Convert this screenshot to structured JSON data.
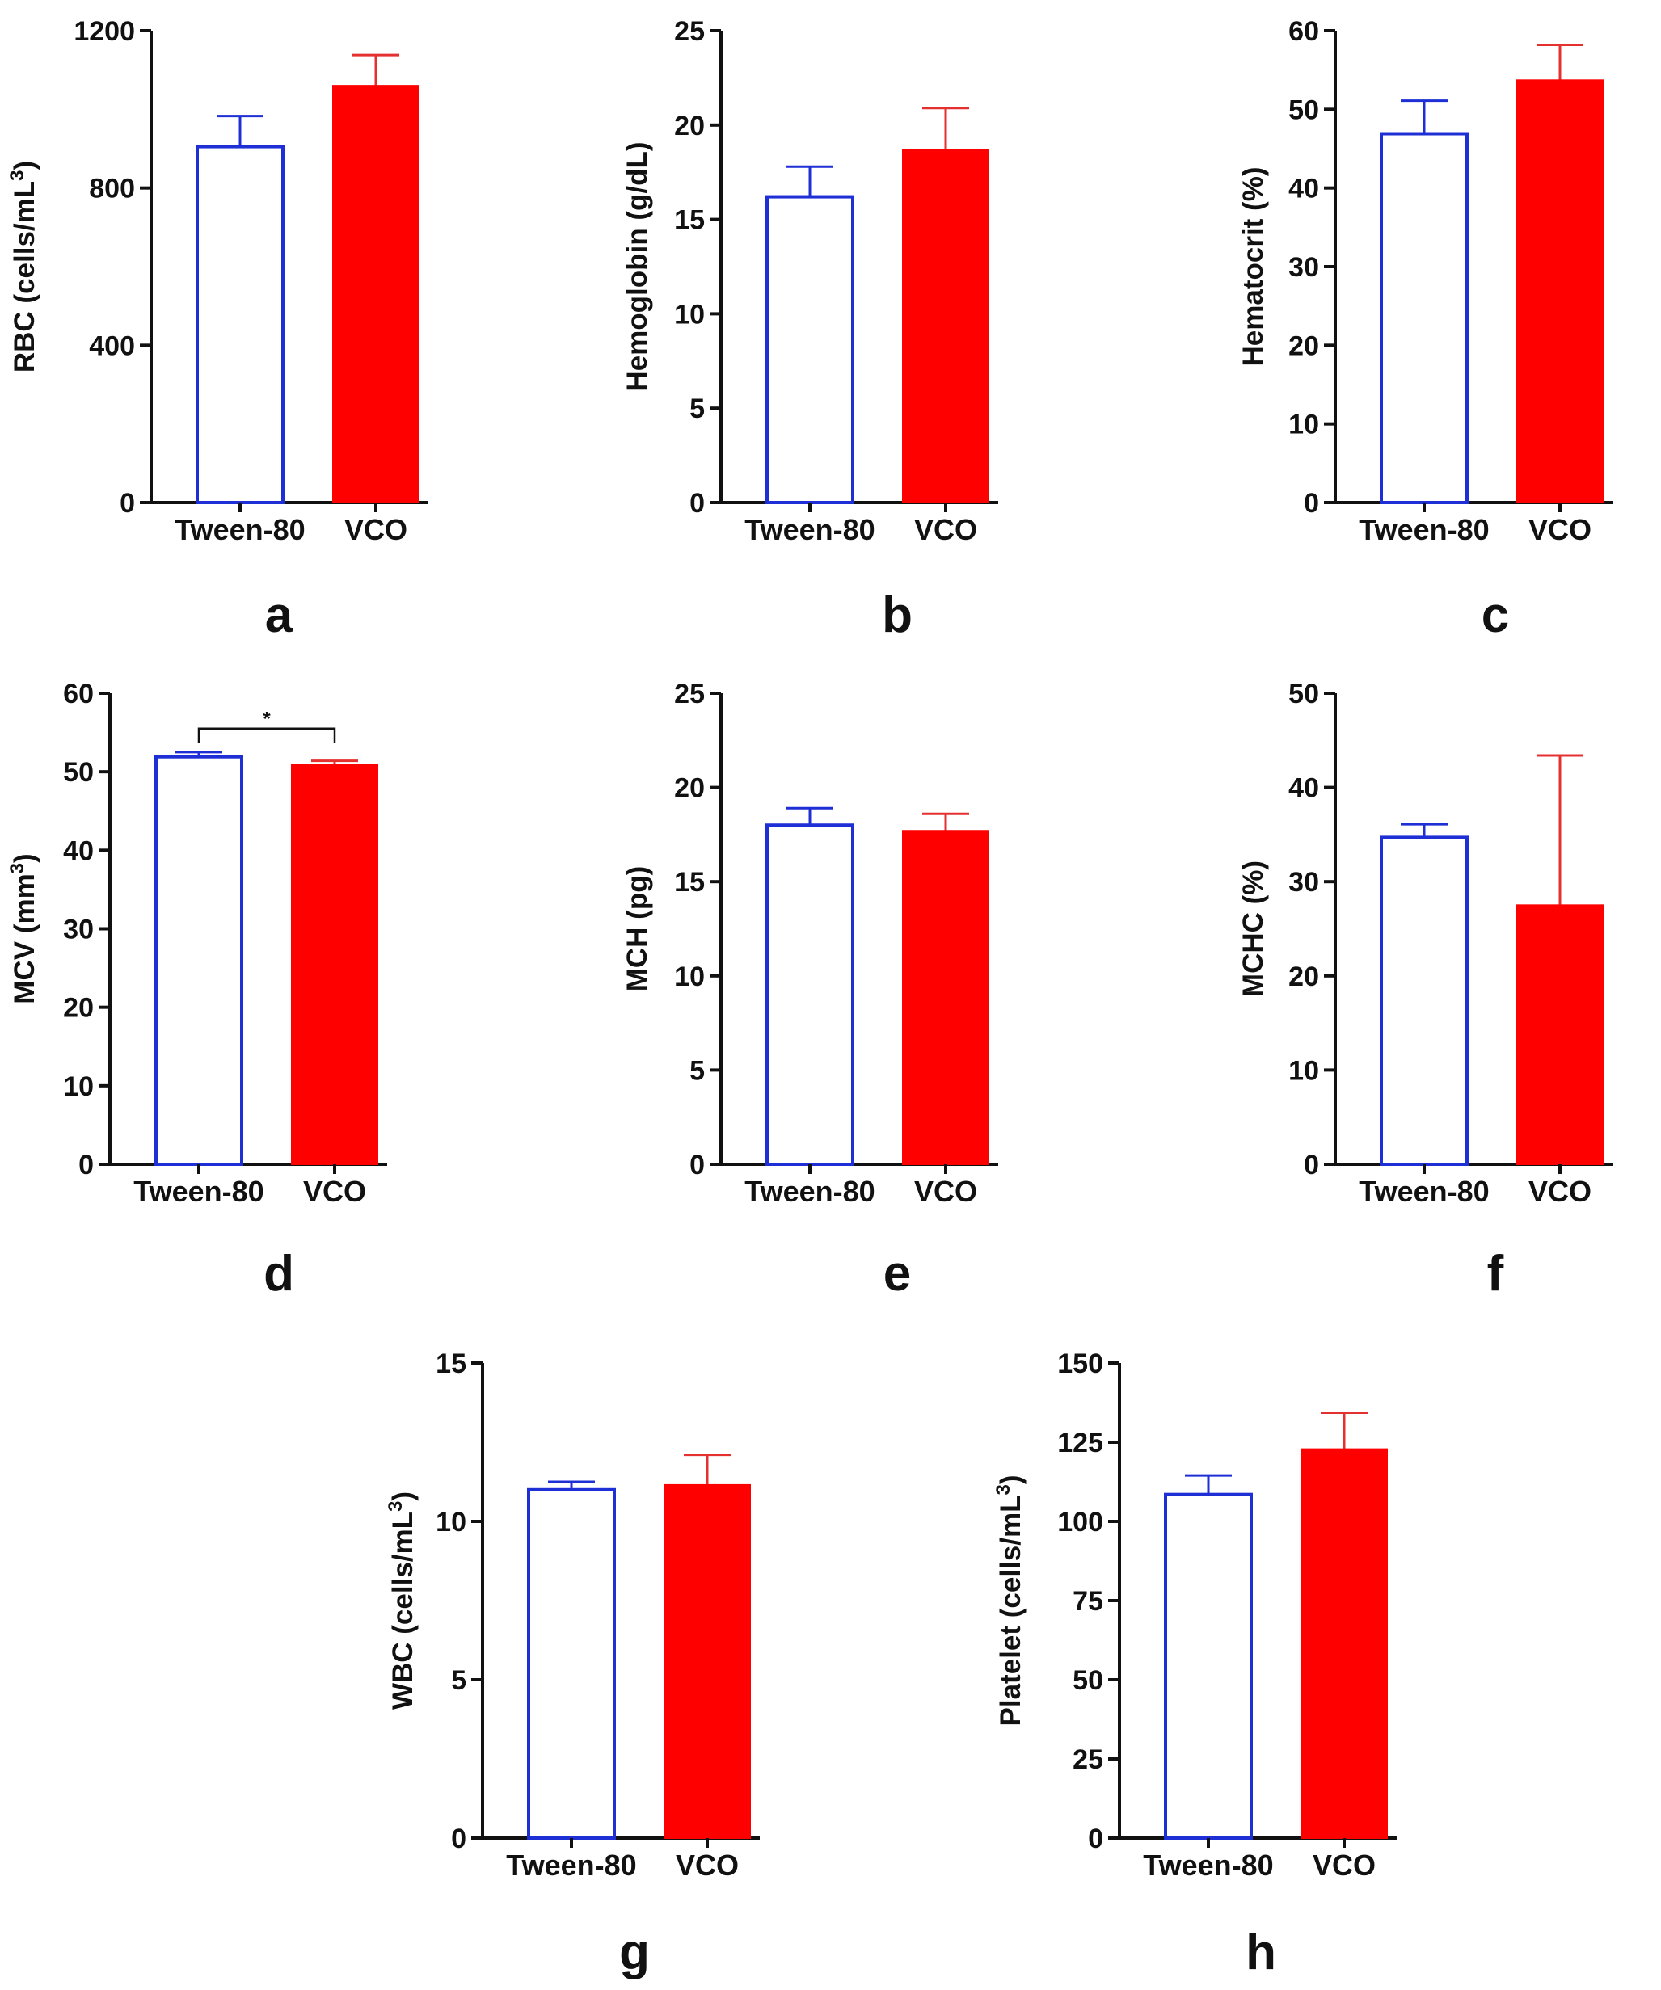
{
  "figure_caption": "",
  "colors": {
    "control_outline": "#1f2fd6",
    "treated_fill": "#ff0000",
    "treated_error": "#e53030",
    "axis": "#111111"
  },
  "chart_data": [
    {
      "panel": "a",
      "type": "bar",
      "categories": [
        "Tween-80",
        "VCO"
      ],
      "ylabel": "RBC (cells/mL",
      "ylabel_sup": "3",
      "ylabel_suffix": ")",
      "ylim": [
        0,
        1200
      ],
      "yticks": [
        "0",
        "400",
        "800",
        "1200"
      ],
      "ytick_values": [
        0,
        400,
        800,
        1200
      ],
      "series": [
        {
          "name": "values",
          "values": [
            905,
            1060
          ]
        },
        {
          "name": "sem",
          "values": [
            78,
            78
          ]
        }
      ],
      "annotation": null
    },
    {
      "panel": "b",
      "type": "bar",
      "categories": [
        "Tween-80",
        "VCO"
      ],
      "ylabel": "Hemoglobin (g/dL)",
      "ylabel_sup": "",
      "ylabel_suffix": "",
      "ylim": [
        0,
        25
      ],
      "yticks": [
        "0",
        "5",
        "10",
        "15",
        "20",
        "25"
      ],
      "ytick_values": [
        0,
        5,
        10,
        15,
        20,
        25
      ],
      "series": [
        {
          "name": "values",
          "values": [
            16.2,
            18.7
          ]
        },
        {
          "name": "sem",
          "values": [
            1.6,
            2.2
          ]
        }
      ],
      "annotation": null
    },
    {
      "panel": "c",
      "type": "bar",
      "categories": [
        "Tween-80",
        "VCO"
      ],
      "ylabel": "Hematocrit (%)",
      "ylabel_sup": "",
      "ylabel_suffix": "",
      "ylim": [
        0,
        60
      ],
      "yticks": [
        "0",
        "10",
        "20",
        "30",
        "40",
        "50",
        "60"
      ],
      "ytick_values": [
        0,
        10,
        20,
        30,
        40,
        50,
        60
      ],
      "series": [
        {
          "name": "values",
          "values": [
            46.9,
            53.7
          ]
        },
        {
          "name": "sem",
          "values": [
            4.2,
            4.5
          ]
        }
      ],
      "annotation": null
    },
    {
      "panel": "d",
      "type": "bar",
      "categories": [
        "Tween-80",
        "VCO"
      ],
      "ylabel": "MCV (mm",
      "ylabel_sup": "3",
      "ylabel_suffix": ")",
      "ylim": [
        0,
        60
      ],
      "yticks": [
        "0",
        "10",
        "20",
        "30",
        "40",
        "50",
        "60"
      ],
      "ytick_values": [
        0,
        10,
        20,
        30,
        40,
        50,
        60
      ],
      "series": [
        {
          "name": "values",
          "values": [
            51.9,
            50.9
          ]
        },
        {
          "name": "sem",
          "values": [
            0.6,
            0.5
          ]
        }
      ],
      "annotation": {
        "text": "*",
        "level": 55.5
      }
    },
    {
      "panel": "e",
      "type": "bar",
      "categories": [
        "Tween-80",
        "VCO"
      ],
      "ylabel": "MCH (pg)",
      "ylabel_sup": "",
      "ylabel_suffix": "",
      "ylim": [
        0,
        25
      ],
      "yticks": [
        "0",
        "5",
        "10",
        "15",
        "20",
        "25"
      ],
      "ytick_values": [
        0,
        5,
        10,
        15,
        20,
        25
      ],
      "series": [
        {
          "name": "values",
          "values": [
            18.0,
            17.7
          ]
        },
        {
          "name": "sem",
          "values": [
            0.9,
            0.9
          ]
        }
      ],
      "annotation": null
    },
    {
      "panel": "f",
      "type": "bar",
      "categories": [
        "Tween-80",
        "VCO"
      ],
      "ylabel": "MCHC (%)",
      "ylabel_sup": "",
      "ylabel_suffix": "",
      "ylim": [
        0,
        50
      ],
      "yticks": [
        "0",
        "10",
        "20",
        "30",
        "40",
        "50"
      ],
      "ytick_values": [
        0,
        10,
        20,
        30,
        40,
        50
      ],
      "series": [
        {
          "name": "values",
          "values": [
            34.7,
            27.5
          ]
        },
        {
          "name": "sem",
          "values": [
            1.4,
            15.9
          ]
        }
      ],
      "annotation": null
    },
    {
      "panel": "g",
      "type": "bar",
      "categories": [
        "Tween-80",
        "VCO"
      ],
      "ylabel": "WBC (cells/mL",
      "ylabel_sup": "3",
      "ylabel_suffix": ")",
      "ylim": [
        0,
        15
      ],
      "yticks": [
        "0",
        "5",
        "10",
        "15"
      ],
      "ytick_values": [
        0,
        5,
        10,
        15
      ],
      "series": [
        {
          "name": "values",
          "values": [
            11.0,
            11.15
          ]
        },
        {
          "name": "sem",
          "values": [
            0.25,
            0.95
          ]
        }
      ],
      "annotation": null
    },
    {
      "panel": "h",
      "type": "bar",
      "categories": [
        "Tween-80",
        "VCO"
      ],
      "ylabel": "Platelet (cells/mL",
      "ylabel_sup": "3",
      "ylabel_suffix": ")",
      "ylim": [
        0,
        150
      ],
      "yticks": [
        "0",
        "25",
        "50",
        "75",
        "100",
        "125",
        "150"
      ],
      "ytick_values": [
        0,
        25,
        50,
        75,
        100,
        125,
        150
      ],
      "series": [
        {
          "name": "values",
          "values": [
            108.5,
            122.8
          ]
        },
        {
          "name": "sem",
          "values": [
            6.0,
            11.5
          ]
        }
      ],
      "annotation": null
    }
  ]
}
